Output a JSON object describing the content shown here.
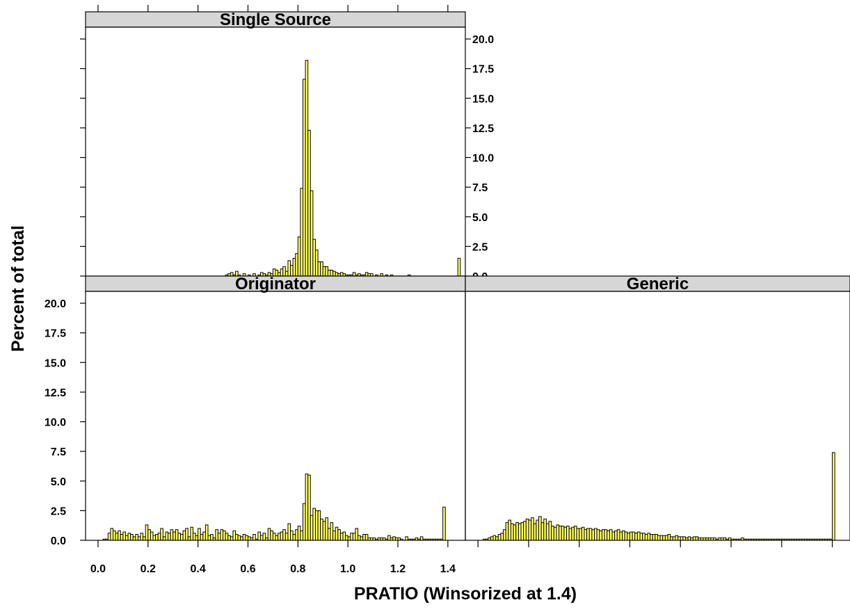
{
  "colors": {
    "bar_fill": "#ffff66",
    "bar_stroke": "#000000",
    "strip_fill": "#d6d6d6",
    "axis": "#000000"
  },
  "chart_data": {
    "type": "bar",
    "layout": "lattice histogram, 3 panels (2x2 grid, top-right empty)",
    "xlabel": "PRATIO (Winsorized at 1.4)",
    "ylabel": "Percent of total",
    "xlim": [
      -0.05,
      1.47
    ],
    "ylim": [
      0,
      21
    ],
    "x_ticks": [
      0.0,
      0.2,
      0.4,
      0.6,
      0.8,
      1.0,
      1.2,
      1.4
    ],
    "x_tick_labels": [
      "0.0",
      "0.2",
      "0.4",
      "0.6",
      "0.8",
      "1.0",
      "1.2",
      "1.4"
    ],
    "y_ticks": [
      0.0,
      2.5,
      5.0,
      7.5,
      10.0,
      12.5,
      15.0,
      17.5,
      20.0
    ],
    "y_tick_labels": [
      "0.0",
      "2.5",
      "5.0",
      "7.5",
      "10.0",
      "12.5",
      "15.0",
      "17.5",
      "20.0"
    ],
    "bin_width": 0.01,
    "bin_start": 0.0,
    "panels": [
      {
        "name": "Single Source",
        "values": [
          0,
          0,
          0,
          0,
          0,
          0,
          0,
          0,
          0,
          0,
          0,
          0,
          0,
          0,
          0,
          0,
          0,
          0,
          0,
          0,
          0,
          0,
          0,
          0,
          0,
          0,
          0,
          0,
          0,
          0,
          0,
          0,
          0,
          0,
          0,
          0,
          0,
          0,
          0,
          0,
          0,
          0,
          0,
          0,
          0,
          0,
          0,
          0,
          0,
          0,
          0,
          0.1,
          0.2,
          0.3,
          0.1,
          0.4,
          0.1,
          0,
          0.2,
          0,
          0.1,
          0,
          0.2,
          0,
          0.1,
          0.3,
          0.2,
          0.1,
          0.3,
          0.2,
          0.6,
          0.5,
          0.3,
          0.6,
          0.8,
          0.4,
          1.3,
          0.9,
          1.5,
          1.9,
          3.3,
          7.4,
          16.6,
          18.2,
          12.3,
          7.2,
          3.1,
          2.2,
          1.2,
          1.2,
          0.8,
          0.8,
          0.5,
          0.5,
          0.4,
          0.3,
          0.2,
          0.3,
          0.2,
          0.1,
          0.1,
          0.1,
          0.3,
          0.1,
          0.2,
          0.1,
          0.1,
          0.3,
          0.2,
          0.2,
          0,
          0.1,
          0,
          0.2,
          0,
          0.1,
          0,
          0.1,
          0,
          0,
          0,
          0,
          0,
          0,
          0.1,
          0,
          0,
          0,
          0,
          0,
          0,
          0,
          0,
          0,
          0,
          0,
          0,
          0,
          0,
          0,
          0,
          0,
          0,
          0,
          1.5
        ]
      },
      {
        "name": "Originator",
        "values": [
          0,
          0,
          0.1,
          0.1,
          0.6,
          1.0,
          0.8,
          0.6,
          0.8,
          0.5,
          0.7,
          0.4,
          0.6,
          0.5,
          0.3,
          0.5,
          0.3,
          0.6,
          0.3,
          1.3,
          0.9,
          0.7,
          0.4,
          0.5,
          0.6,
          1.0,
          0.3,
          0.7,
          0.6,
          0.9,
          0.7,
          0.9,
          0.6,
          0.5,
          0.8,
          1.0,
          0.3,
          1.1,
          0.6,
          0.4,
          1.0,
          0.5,
          0.7,
          1.3,
          0.4,
          0.5,
          0.2,
          0.9,
          0.6,
          0.9,
          0.8,
          0.6,
          0.4,
          0.3,
          0.8,
          0.5,
          0.4,
          0.3,
          0.5,
          0.4,
          0.3,
          0.2,
          0.5,
          0.1,
          0.7,
          0.4,
          0.6,
          0.2,
          1.0,
          0.8,
          0.6,
          0.4,
          0.6,
          0.7,
          0.9,
          0.6,
          1.4,
          0.8,
          0.5,
          0.9,
          1.2,
          0.8,
          3.1,
          5.6,
          5.5,
          2.1,
          2.7,
          2.5,
          2.5,
          1.8,
          1.6,
          1.9,
          1.0,
          1.5,
          0.8,
          1.1,
          0.9,
          0.6,
          0.7,
          0.4,
          0.3,
          0.6,
          0.6,
          1.0,
          0.4,
          0.3,
          0.5,
          0.5,
          0.2,
          0.2,
          0.2,
          0.1,
          0.2,
          0.2,
          0.2,
          0.1,
          0.4,
          0.2,
          0.3,
          0.2,
          0.2,
          0.1,
          0,
          0.3,
          0.1,
          0.1,
          0.1,
          0.2,
          0.1,
          0.3,
          0.1,
          0.1,
          0.1,
          0.1,
          0.1,
          0.1,
          0.1,
          0.1,
          2.8
        ]
      },
      {
        "name": "Generic",
        "values": [
          0,
          0,
          0.1,
          0.1,
          0.2,
          0.3,
          0.4,
          0.3,
          0.5,
          0.6,
          0.9,
          1.5,
          1.7,
          1.4,
          1.3,
          1.5,
          1.4,
          1.5,
          1.6,
          1.8,
          1.7,
          1.9,
          1.4,
          1.7,
          2.0,
          1.5,
          1.8,
          1.4,
          1.6,
          1.2,
          1.1,
          1.3,
          1.2,
          1.2,
          1.1,
          1.2,
          1.0,
          1.1,
          1.2,
          1.0,
          1.0,
          1.1,
          0.9,
          1.0,
          1.0,
          0.9,
          1.0,
          0.9,
          0.8,
          0.9,
          0.9,
          0.8,
          0.9,
          0.7,
          0.8,
          0.9,
          0.7,
          0.8,
          0.7,
          0.6,
          0.7,
          0.7,
          0.6,
          0.7,
          0.6,
          0.6,
          0.5,
          0.6,
          0.5,
          0.5,
          0.5,
          0.4,
          0.4,
          0.4,
          0.4,
          0.5,
          0.3,
          0.3,
          0.4,
          0.3,
          0.3,
          0.3,
          0.2,
          0.3,
          0.2,
          0.3,
          0.3,
          0.2,
          0.2,
          0.2,
          0.2,
          0.2,
          0.2,
          0.2,
          0.1,
          0.2,
          0.2,
          0.2,
          0.1,
          0.2,
          0.1,
          0.1,
          0.1,
          0.1,
          0.2,
          0.1,
          0.1,
          0.1,
          0.1,
          0.1,
          0.1,
          0.1,
          0.1,
          0.1,
          0.1,
          0.1,
          0.1,
          0.1,
          0.1,
          0.1,
          0.1,
          0.1,
          0.1,
          0.1,
          0.1,
          0.1,
          0.1,
          0.1,
          0.1,
          0.1,
          0.1,
          0.1,
          0.1,
          0.1,
          0.1,
          0.1,
          0.1,
          0.1,
          0.1,
          0.1,
          7.4
        ]
      }
    ]
  }
}
